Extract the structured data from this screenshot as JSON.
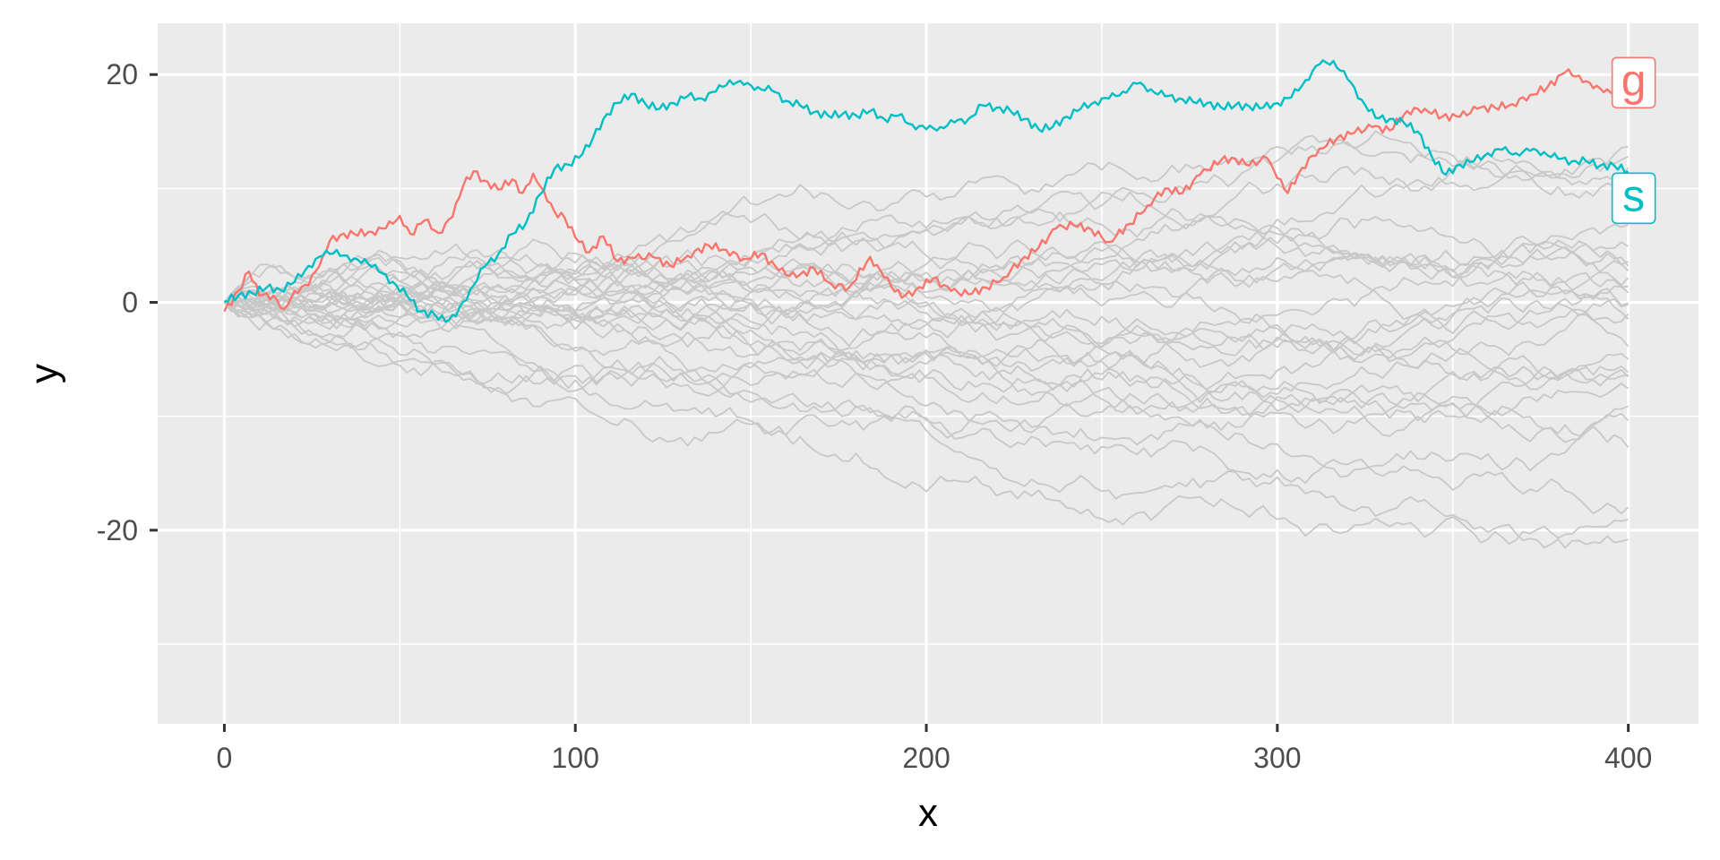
{
  "chart_data": {
    "type": "line",
    "title": "",
    "xlabel": "x",
    "ylabel": "y",
    "xlim": [
      -19,
      420
    ],
    "ylim": [
      -37,
      24.5
    ],
    "x_ticks": [
      0,
      100,
      200,
      300,
      400
    ],
    "x_tick_labels": [
      "0",
      "100",
      "200",
      "300",
      "400"
    ],
    "y_ticks": [
      -20,
      0,
      20
    ],
    "y_tick_labels": [
      "-20",
      "0",
      "20"
    ],
    "grid": true,
    "legend": "none",
    "background_series_count": 28,
    "background_color": "#c8c8c8",
    "panel_color": "#ebebeb",
    "highlighted_series": [
      {
        "name": "g",
        "color": "#f8766d",
        "points": [
          [
            0,
            -0.8
          ],
          [
            4,
            1
          ],
          [
            7,
            2.7
          ],
          [
            10,
            0.6
          ],
          [
            14,
            0.6
          ],
          [
            17,
            -0.6
          ],
          [
            20,
            1
          ],
          [
            24,
            1.5
          ],
          [
            28,
            4
          ],
          [
            30,
            5.4
          ],
          [
            33,
            5.9
          ],
          [
            37,
            6
          ],
          [
            42,
            6.2
          ],
          [
            46,
            6.5
          ],
          [
            50,
            7.6
          ],
          [
            53,
            6
          ],
          [
            57,
            7.2
          ],
          [
            61,
            6.1
          ],
          [
            65,
            7.5
          ],
          [
            68,
            10.2
          ],
          [
            71,
            11.5
          ],
          [
            74,
            10.7
          ],
          [
            78,
            9.9
          ],
          [
            82,
            10.8
          ],
          [
            85,
            9.6
          ],
          [
            88,
            11.3
          ],
          [
            91,
            9.8
          ],
          [
            94,
            8
          ],
          [
            97,
            7.4
          ],
          [
            100,
            5.7
          ],
          [
            104,
            4.4
          ],
          [
            108,
            5.8
          ],
          [
            112,
            3.6
          ],
          [
            117,
            3.9
          ],
          [
            122,
            4
          ],
          [
            127,
            3.2
          ],
          [
            132,
            4.1
          ],
          [
            138,
            5
          ],
          [
            143,
            4.6
          ],
          [
            148,
            3.8
          ],
          [
            153,
            4.3
          ],
          [
            158,
            2.8
          ],
          [
            163,
            2.2
          ],
          [
            168,
            3
          ],
          [
            173,
            1.6
          ],
          [
            178,
            1.3
          ],
          [
            184,
            4
          ],
          [
            188,
            2.2
          ],
          [
            193,
            0.4
          ],
          [
            197,
            1.1
          ],
          [
            202,
            2.1
          ],
          [
            207,
            1
          ],
          [
            212,
            0.7
          ],
          [
            217,
            1.3
          ],
          [
            222,
            2.2
          ],
          [
            227,
            3.7
          ],
          [
            232,
            4.8
          ],
          [
            237,
            6.5
          ],
          [
            242,
            6.8
          ],
          [
            247,
            6.4
          ],
          [
            252,
            5.3
          ],
          [
            258,
            6.9
          ],
          [
            263,
            8.5
          ],
          [
            268,
            10
          ],
          [
            273,
            9.6
          ],
          [
            278,
            11.2
          ],
          [
            284,
            12.5
          ],
          [
            288,
            12.6
          ],
          [
            292,
            12
          ],
          [
            297,
            12.7
          ],
          [
            300,
            10.9
          ],
          [
            303,
            9.6
          ],
          [
            307,
            11.8
          ],
          [
            312,
            13.5
          ],
          [
            317,
            14.4
          ],
          [
            322,
            14.9
          ],
          [
            327,
            15.4
          ],
          [
            332,
            15.1
          ],
          [
            337,
            16.8
          ],
          [
            342,
            17
          ],
          [
            347,
            16.3
          ],
          [
            352,
            16.3
          ],
          [
            357,
            17
          ],
          [
            362,
            17.1
          ],
          [
            367,
            17.4
          ],
          [
            372,
            18.2
          ],
          [
            377,
            18.9
          ],
          [
            382,
            20.2
          ],
          [
            386,
            19.9
          ],
          [
            390,
            18.8
          ],
          [
            394,
            18.7
          ],
          [
            398,
            18.3
          ],
          [
            400,
            17.4
          ]
        ]
      },
      {
        "name": "s",
        "color": "#00bfc4",
        "points": [
          [
            0,
            0.1
          ],
          [
            4,
            0.6
          ],
          [
            8,
            0.8
          ],
          [
            12,
            1.3
          ],
          [
            16,
            1.1
          ],
          [
            20,
            1.8
          ],
          [
            24,
            3.2
          ],
          [
            28,
            4.1
          ],
          [
            32,
            4.6
          ],
          [
            36,
            3.6
          ],
          [
            40,
            3.8
          ],
          [
            44,
            2.7
          ],
          [
            48,
            1.8
          ],
          [
            52,
            0.6
          ],
          [
            56,
            -0.8
          ],
          [
            60,
            -1.1
          ],
          [
            63,
            -1.7
          ],
          [
            66,
            -1.2
          ],
          [
            70,
            1.1
          ],
          [
            74,
            3.1
          ],
          [
            78,
            4.2
          ],
          [
            82,
            6
          ],
          [
            86,
            7
          ],
          [
            90,
            9.5
          ],
          [
            94,
            11.7
          ],
          [
            98,
            12.1
          ],
          [
            102,
            13
          ],
          [
            105,
            14.4
          ],
          [
            108,
            16.1
          ],
          [
            112,
            17.5
          ],
          [
            116,
            18.3
          ],
          [
            120,
            17.4
          ],
          [
            124,
            17
          ],
          [
            128,
            17.5
          ],
          [
            132,
            18.1
          ],
          [
            136,
            17.9
          ],
          [
            140,
            18.5
          ],
          [
            144,
            19.5
          ],
          [
            148,
            19.1
          ],
          [
            152,
            18.9
          ],
          [
            156,
            18.6
          ],
          [
            160,
            17.7
          ],
          [
            164,
            17.3
          ],
          [
            168,
            16.7
          ],
          [
            172,
            16.4
          ],
          [
            176,
            16.5
          ],
          [
            180,
            16.4
          ],
          [
            184,
            16.8
          ],
          [
            188,
            16.1
          ],
          [
            192,
            16.4
          ],
          [
            196,
            15.6
          ],
          [
            200,
            15.2
          ],
          [
            204,
            15.4
          ],
          [
            208,
            15.8
          ],
          [
            212,
            16.1
          ],
          [
            216,
            17.3
          ],
          [
            220,
            17.1
          ],
          [
            224,
            16.8
          ],
          [
            228,
            16.1
          ],
          [
            232,
            15.2
          ],
          [
            236,
            15.4
          ],
          [
            240,
            16.3
          ],
          [
            244,
            17
          ],
          [
            248,
            17.6
          ],
          [
            252,
            17.9
          ],
          [
            256,
            18.5
          ],
          [
            260,
            19.2
          ],
          [
            264,
            18.7
          ],
          [
            268,
            18.1
          ],
          [
            272,
            17.9
          ],
          [
            276,
            17.6
          ],
          [
            280,
            17.5
          ],
          [
            284,
            17.1
          ],
          [
            288,
            17.3
          ],
          [
            292,
            17.2
          ],
          [
            296,
            17.1
          ],
          [
            300,
            17.5
          ],
          [
            304,
            18
          ],
          [
            308,
            19.5
          ],
          [
            312,
            20.9
          ],
          [
            316,
            21.2
          ],
          [
            320,
            19.6
          ],
          [
            324,
            17.8
          ],
          [
            328,
            16.2
          ],
          [
            332,
            16.1
          ],
          [
            336,
            15.8
          ],
          [
            340,
            15
          ],
          [
            344,
            12.8
          ],
          [
            348,
            11.2
          ],
          [
            352,
            12.1
          ],
          [
            356,
            12.4
          ],
          [
            360,
            13.1
          ],
          [
            364,
            13.4
          ],
          [
            368,
            13.1
          ],
          [
            372,
            13.3
          ],
          [
            376,
            13.2
          ],
          [
            380,
            12.6
          ],
          [
            384,
            12.4
          ],
          [
            388,
            12.4
          ],
          [
            392,
            12
          ],
          [
            396,
            12
          ],
          [
            400,
            11.5
          ]
        ]
      }
    ]
  }
}
